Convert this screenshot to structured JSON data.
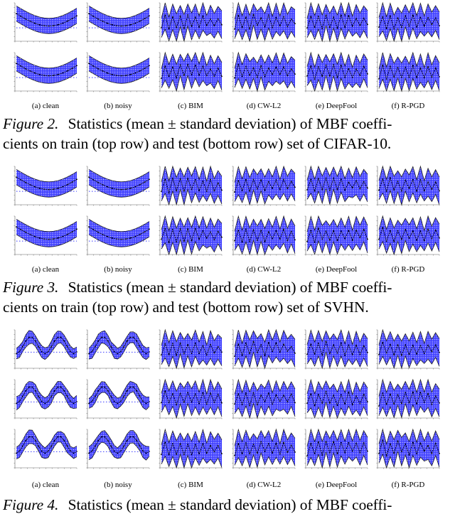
{
  "subfigure_labels": [
    "(a) clean",
    "(b) noisy",
    "(c) BIM",
    "(d) CW-L2",
    "(e) DeepFool",
    "(f) R-PGD"
  ],
  "colors": {
    "band": "#3a3aff",
    "line": "#000000",
    "pattern": "#ffffff"
  },
  "figures": [
    {
      "id": "fig2",
      "rows": 2,
      "panel_shapes": [
        "smooth-u",
        "smooth-u",
        "oscillating",
        "oscillating",
        "oscillating",
        "oscillating"
      ],
      "caption": {
        "label": "Figure 2.",
        "line1": "Statistics (mean ± standard deviation) of MBF coeffi-",
        "line2": "cients on train (top row) and test (bottom row) set of CIFAR-10."
      }
    },
    {
      "id": "fig3",
      "rows": 2,
      "panel_shapes": [
        "smooth-u",
        "smooth-u",
        "oscillating",
        "oscillating",
        "oscillating",
        "oscillating"
      ],
      "caption": {
        "label": "Figure 3.",
        "line1": "Statistics (mean ± standard deviation) of MBF coeffi-",
        "line2": "cients on train (top row) and test (bottom row) set of SVHN."
      }
    },
    {
      "id": "fig4",
      "rows": 3,
      "panel_shapes": [
        "sine",
        "sine",
        "oscillating",
        "oscillating",
        "oscillating",
        "oscillating"
      ],
      "caption": {
        "label": "Figure 4.",
        "line1": "Statistics (mean ± standard deviation) of MBF coeffi-"
      }
    }
  ]
}
